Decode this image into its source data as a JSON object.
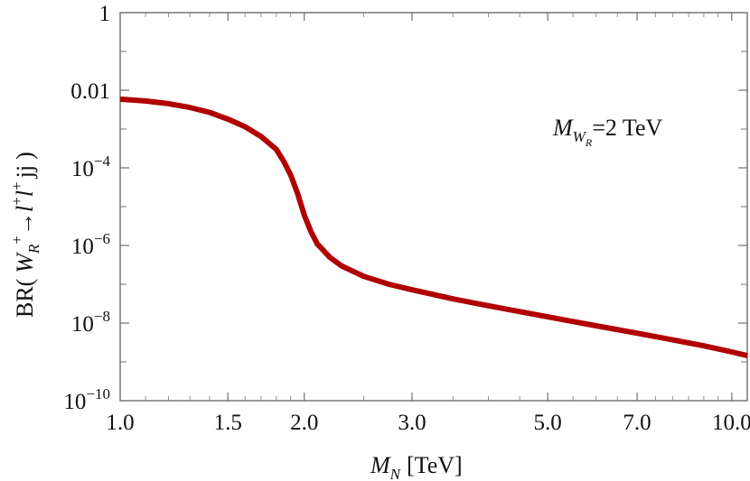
{
  "chart_data": {
    "type": "line",
    "title": "",
    "xlabel": {
      "symbol": "M",
      "sub": "N",
      "unit": "[TeV]"
    },
    "ylabel": {
      "prefix": "BR(",
      "W": "W",
      "W_sub": "R",
      "W_sup": "+",
      "arrow": "→",
      "l1": "l",
      "l1_sup": "+",
      "l2": "l",
      "l2_sup": "+",
      "jj": "jj",
      "close": ")"
    },
    "xscale": "log",
    "yscale": "log",
    "xlim": [
      1.0,
      10.6
    ],
    "ylim": [
      1e-10,
      1
    ],
    "x_ticks": [
      {
        "value": 1.0,
        "label": "1.0"
      },
      {
        "value": 1.5,
        "label": "1.5"
      },
      {
        "value": 2.0,
        "label": "2.0"
      },
      {
        "value": 3.0,
        "label": "3.0"
      },
      {
        "value": 5.0,
        "label": "5.0"
      },
      {
        "value": 7.0,
        "label": "7.0"
      },
      {
        "value": 10.0,
        "label": "10.0"
      }
    ],
    "y_ticks": [
      {
        "value": 1,
        "base": "1",
        "exp": ""
      },
      {
        "value": 0.01,
        "base": "0.01",
        "exp": ""
      },
      {
        "value": 0.0001,
        "base": "10",
        "exp": "−4"
      },
      {
        "value": 1e-06,
        "base": "10",
        "exp": "−6"
      },
      {
        "value": 1e-08,
        "base": "10",
        "exp": "−8"
      },
      {
        "value": 1e-10,
        "base": "10",
        "exp": "−10"
      }
    ],
    "series": [
      {
        "name": "BR(W_R+ -> l+ l+ jj)",
        "color": "#b00000",
        "x": [
          1.0,
          1.1,
          1.2,
          1.3,
          1.4,
          1.5,
          1.6,
          1.7,
          1.8,
          1.85,
          1.9,
          1.95,
          2.0,
          2.05,
          2.1,
          2.2,
          2.3,
          2.5,
          2.75,
          3.0,
          3.5,
          4.0,
          5.0,
          6.0,
          7.0,
          8.0,
          9.0,
          10.0,
          10.6
        ],
        "y": [
          0.0059,
          0.0053,
          0.0045,
          0.0036,
          0.0027,
          0.0018,
          0.00115,
          0.00064,
          0.0003,
          0.00015,
          6.5e-05,
          2.2e-05,
          6e-06,
          2.3e-06,
          1.1e-06,
          5e-07,
          3e-07,
          1.6e-07,
          1e-07,
          7.2e-08,
          4.2e-08,
          2.8e-08,
          1.45e-08,
          8.5e-09,
          5.5e-09,
          3.7e-09,
          2.6e-09,
          1.8e-09,
          1.45e-09
        ]
      }
    ],
    "annotation": {
      "symbol": "M",
      "sub": "W",
      "subsub": "R",
      "text": "=2 TeV",
      "placement": "top-right"
    },
    "grid": false
  }
}
